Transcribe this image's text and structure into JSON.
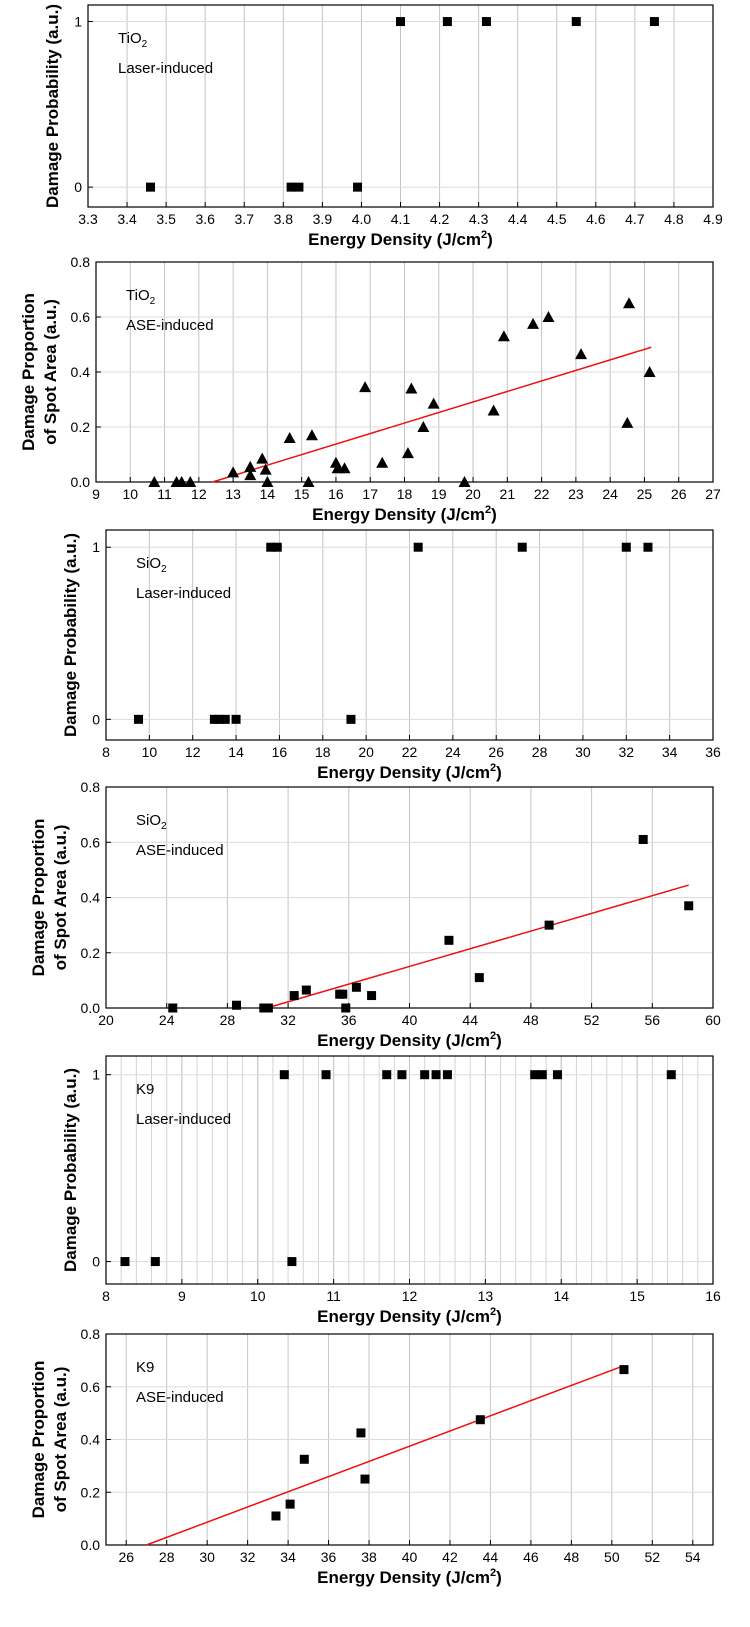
{
  "chart_data": [
    {
      "type": "scatter",
      "xlabel": "Energy Density (J/cm²)",
      "ylabel": "Damage Probability (a.u.)",
      "annotation_lines": [
        [
          "TiO",
          "2"
        ],
        [
          "Laser-induced"
        ]
      ],
      "xlim": [
        3.3,
        4.9
      ],
      "ylim": [
        -0.12,
        1.1
      ],
      "x_ticks": [
        3.3,
        3.4,
        3.5,
        3.6,
        3.7,
        3.8,
        3.9,
        4.0,
        4.1,
        4.2,
        4.3,
        4.4,
        4.5,
        4.6,
        4.7,
        4.8,
        4.9
      ],
      "x_tick_labels": [
        "3.3",
        "3.4",
        "3.5",
        "3.6",
        "3.7",
        "3.8",
        "3.9",
        "4.0",
        "4.1",
        "4.2",
        "4.3",
        "4.4",
        "4.5",
        "4.6",
        "4.7",
        "4.8",
        "4.9"
      ],
      "y_ticks": [
        0,
        1
      ],
      "y_tick_labels": [
        "0",
        "1"
      ],
      "marker": "square",
      "grid": "vertical",
      "points": [
        [
          3.46,
          0
        ],
        [
          3.82,
          0
        ],
        [
          3.84,
          0
        ],
        [
          3.99,
          0
        ],
        [
          4.1,
          1
        ],
        [
          4.22,
          1
        ],
        [
          4.32,
          1
        ],
        [
          4.55,
          1
        ],
        [
          4.75,
          1
        ]
      ]
    },
    {
      "type": "scatter",
      "xlabel": "Energy Density (J/cm²)",
      "ylabel": "Damage Proportion\nof Spot Area (a.u.)",
      "annotation_lines": [
        [
          "TiO",
          "2"
        ],
        [
          "ASE-induced"
        ]
      ],
      "xlim": [
        9,
        27
      ],
      "ylim": [
        0,
        0.8
      ],
      "x_ticks": [
        9,
        10,
        11,
        12,
        13,
        14,
        15,
        16,
        17,
        18,
        19,
        20,
        21,
        22,
        23,
        24,
        25,
        26,
        27
      ],
      "x_tick_labels": [
        "9",
        "10",
        "11",
        "12",
        "13",
        "14",
        "15",
        "16",
        "17",
        "18",
        "19",
        "20",
        "21",
        "22",
        "23",
        "24",
        "25",
        "26",
        "27"
      ],
      "y_ticks": [
        0,
        0.2,
        0.4,
        0.6,
        0.8
      ],
      "y_tick_labels": [
        "0.0",
        "0.2",
        "0.4",
        "0.6",
        "0.8"
      ],
      "marker": "triangle",
      "grid": "vertical",
      "points": [
        [
          10.7,
          0.0
        ],
        [
          11.35,
          0.0
        ],
        [
          11.5,
          0.0
        ],
        [
          11.75,
          0.0
        ],
        [
          13.0,
          0.035
        ],
        [
          13.5,
          0.025
        ],
        [
          13.5,
          0.055
        ],
        [
          13.85,
          0.085
        ],
        [
          13.95,
          0.045
        ],
        [
          14.0,
          0.0
        ],
        [
          14.65,
          0.16
        ],
        [
          15.2,
          0.0
        ],
        [
          15.3,
          0.17
        ],
        [
          16.0,
          0.07
        ],
        [
          16.05,
          0.05
        ],
        [
          16.25,
          0.05
        ],
        [
          16.85,
          0.345
        ],
        [
          17.35,
          0.07
        ],
        [
          18.1,
          0.105
        ],
        [
          18.2,
          0.34
        ],
        [
          18.55,
          0.2
        ],
        [
          18.85,
          0.285
        ],
        [
          19.75,
          0.0
        ],
        [
          20.6,
          0.26
        ],
        [
          20.9,
          0.53
        ],
        [
          21.75,
          0.575
        ],
        [
          22.2,
          0.6
        ],
        [
          23.15,
          0.465
        ],
        [
          24.5,
          0.215
        ],
        [
          24.55,
          0.65
        ],
        [
          25.15,
          0.4
        ]
      ],
      "fit_line": [
        [
          12.4,
          0.0
        ],
        [
          25.2,
          0.49
        ]
      ]
    },
    {
      "type": "scatter",
      "xlabel": "Energy Density (J/cm²)",
      "ylabel": "Damage Probability (a.u.)",
      "annotation_lines": [
        [
          "SiO",
          "2"
        ],
        [
          "Laser-induced"
        ]
      ],
      "xlim": [
        8,
        36
      ],
      "ylim": [
        -0.12,
        1.1
      ],
      "x_ticks": [
        8,
        10,
        12,
        14,
        16,
        18,
        20,
        22,
        24,
        26,
        28,
        30,
        32,
        34,
        36
      ],
      "x_tick_labels": [
        "8",
        "10",
        "12",
        "14",
        "16",
        "18",
        "20",
        "22",
        "24",
        "26",
        "28",
        "30",
        "32",
        "34",
        "36"
      ],
      "y_ticks": [
        0,
        1
      ],
      "y_tick_labels": [
        "0",
        "1"
      ],
      "marker": "square",
      "grid": "vertical",
      "points": [
        [
          9.5,
          0
        ],
        [
          13.0,
          0
        ],
        [
          13.2,
          0
        ],
        [
          13.5,
          0
        ],
        [
          14.0,
          0
        ],
        [
          19.3,
          0
        ],
        [
          15.6,
          1
        ],
        [
          15.9,
          1
        ],
        [
          22.4,
          1
        ],
        [
          27.2,
          1
        ],
        [
          32.0,
          1
        ],
        [
          33.0,
          1
        ]
      ]
    },
    {
      "type": "scatter",
      "xlabel": "Energy Density (J/cm²)",
      "ylabel": "Damage Proportion\nof Spot Area (a.u.)",
      "annotation_lines": [
        [
          "SiO",
          "2"
        ],
        [
          "ASE-induced"
        ]
      ],
      "xlim": [
        20,
        60
      ],
      "ylim": [
        0,
        0.8
      ],
      "x_ticks": [
        20,
        24,
        28,
        32,
        36,
        40,
        44,
        48,
        52,
        56,
        60
      ],
      "x_tick_labels": [
        "20",
        "24",
        "28",
        "32",
        "36",
        "40",
        "44",
        "48",
        "52",
        "56",
        "60"
      ],
      "y_ticks": [
        0,
        0.2,
        0.4,
        0.6,
        0.8
      ],
      "y_tick_labels": [
        "0.0",
        "0.2",
        "0.4",
        "0.6",
        "0.8"
      ],
      "marker": "square",
      "grid": "vertical",
      "points": [
        [
          24.4,
          0.0
        ],
        [
          28.6,
          0.01
        ],
        [
          30.4,
          0.0
        ],
        [
          30.7,
          0.0
        ],
        [
          32.4,
          0.045
        ],
        [
          33.2,
          0.065
        ],
        [
          35.4,
          0.05
        ],
        [
          35.6,
          0.05
        ],
        [
          35.8,
          0.0
        ],
        [
          36.5,
          0.075
        ],
        [
          37.5,
          0.045
        ],
        [
          42.6,
          0.245
        ],
        [
          44.6,
          0.11
        ],
        [
          49.2,
          0.3
        ],
        [
          55.4,
          0.61
        ],
        [
          58.4,
          0.37
        ]
      ],
      "fit_line": [
        [
          30.6,
          0.0
        ],
        [
          58.4,
          0.445
        ]
      ]
    },
    {
      "type": "scatter",
      "xlabel": "Energy Density (J/cm²)",
      "ylabel": "Damage Probability (a.u.)",
      "annotation_lines": [
        [
          "K9"
        ],
        [
          "Laser-induced"
        ]
      ],
      "xlim": [
        8,
        16
      ],
      "ylim": [
        -0.12,
        1.1
      ],
      "x_ticks": [
        8,
        9,
        10,
        11,
        12,
        13,
        14,
        15,
        16
      ],
      "x_tick_labels": [
        "8",
        "9",
        "10",
        "11",
        "12",
        "13",
        "14",
        "15",
        "16"
      ],
      "minor_x_step": 0.2,
      "y_ticks": [
        0,
        1
      ],
      "y_tick_labels": [
        "0",
        "1"
      ],
      "marker": "square",
      "grid": "vertical",
      "points": [
        [
          8.25,
          0
        ],
        [
          8.65,
          0
        ],
        [
          10.45,
          0
        ],
        [
          10.35,
          1
        ],
        [
          10.9,
          1
        ],
        [
          11.7,
          1
        ],
        [
          11.9,
          1
        ],
        [
          12.2,
          1
        ],
        [
          12.35,
          1
        ],
        [
          12.5,
          1
        ],
        [
          13.65,
          1
        ],
        [
          13.75,
          1
        ],
        [
          13.95,
          1
        ],
        [
          15.45,
          1
        ]
      ]
    },
    {
      "type": "scatter",
      "xlabel": "Energy Density (J/cm²)",
      "ylabel": "Damage Proportion\nof Spot Area (a.u.)",
      "annotation_lines": [
        [
          "K9"
        ],
        [
          "ASE-induced"
        ]
      ],
      "xlim": [
        25,
        55
      ],
      "ylim": [
        0,
        0.8
      ],
      "x_ticks": [
        26,
        28,
        30,
        32,
        34,
        36,
        38,
        40,
        42,
        44,
        46,
        48,
        50,
        52,
        54
      ],
      "x_tick_labels": [
        "26",
        "28",
        "30",
        "32",
        "34",
        "36",
        "38",
        "40",
        "42",
        "44",
        "46",
        "48",
        "50",
        "52",
        "54"
      ],
      "y_ticks": [
        0,
        0.2,
        0.4,
        0.6,
        0.8
      ],
      "y_tick_labels": [
        "0.0",
        "0.2",
        "0.4",
        "0.6",
        "0.8"
      ],
      "marker": "square",
      "grid": "vertical",
      "points": [
        [
          33.4,
          0.11
        ],
        [
          34.1,
          0.155
        ],
        [
          34.8,
          0.325
        ],
        [
          37.6,
          0.425
        ],
        [
          37.8,
          0.25
        ],
        [
          43.5,
          0.475
        ],
        [
          50.6,
          0.665
        ]
      ],
      "fit_line": [
        [
          27.0,
          0.0
        ],
        [
          50.6,
          0.68
        ]
      ]
    }
  ]
}
